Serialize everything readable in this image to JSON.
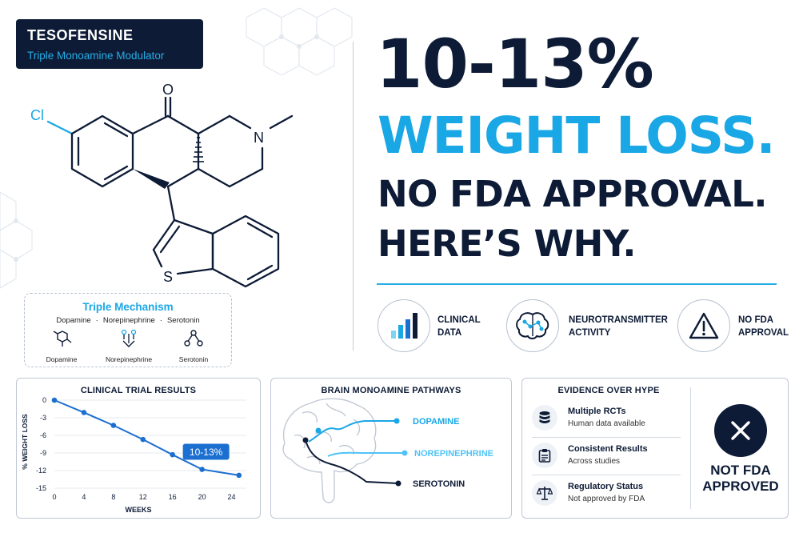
{
  "badge": {
    "title": "TESOFENSINE",
    "subtitle": "Triple Monoamine Modulator"
  },
  "molecule": {
    "cl_label": "Cl",
    "o_label": "O",
    "n_label": "N",
    "s_label": "S"
  },
  "headline": {
    "line1": "10-13%",
    "line2": "WEIGHT LOSS.",
    "line3": "NO FDA APPROVAL.",
    "line4": "HERE’S WHY."
  },
  "features": [
    {
      "icon": "bar-chart-icon",
      "line1": "CLINICAL",
      "line2": "DATA"
    },
    {
      "icon": "brain-network-icon",
      "line1": "NEUROTRANSMITTER",
      "line2": "ACTIVITY"
    },
    {
      "icon": "warning-icon",
      "line1": "NO FDA",
      "line2": "APPROVAL"
    }
  ],
  "mechanism": {
    "title": "Triple Mechanism",
    "subs": [
      "Dopamine",
      "Norepinephrine",
      "Serotonin"
    ],
    "icons": [
      {
        "icon": "dopamine-molecule-icon",
        "label": "Dopamine"
      },
      {
        "icon": "norepinephrine-molecule-icon",
        "label": "Norepinephrine"
      },
      {
        "icon": "serotonin-molecule-icon",
        "label": "Serotonin"
      }
    ]
  },
  "chart_data": {
    "type": "line",
    "title": "CLINICAL TRIAL RESULTS",
    "xlabel": "WEEKS",
    "ylabel": "% WEIGHT LOSS",
    "xticks": [
      0,
      4,
      8,
      12,
      16,
      20,
      24
    ],
    "yticks": [
      0,
      -3,
      -6,
      -9,
      -12,
      -15
    ],
    "xlim": [
      0,
      26
    ],
    "ylim": [
      -15,
      0
    ],
    "x": [
      0,
      4,
      8,
      12,
      16,
      20,
      25
    ],
    "y": [
      0,
      -2.1,
      -4.3,
      -6.7,
      -9.3,
      -11.8,
      -12.8
    ],
    "annotation": "10-13%",
    "line_color": "#1b6fd1",
    "annotation_color": "#1b6fd1"
  },
  "brain_panel": {
    "title": "BRAIN MONOAMINE PATHWAYS",
    "pathways": [
      {
        "label": "DOPAMINE",
        "color": "#1aa7e6"
      },
      {
        "label": "NOREPINEPHRINE",
        "color": "#4fc3f7"
      },
      {
        "label": "SEROTONIN",
        "color": "#0d1b36"
      }
    ]
  },
  "evidence": {
    "title": "EVIDENCE OVER HYPE",
    "items": [
      {
        "icon": "database-icon",
        "title": "Multiple RCTs",
        "sub": "Human data available"
      },
      {
        "icon": "clipboard-icon",
        "title": "Consistent Results",
        "sub": "Across studies"
      },
      {
        "icon": "scales-icon",
        "title": "Regulatory Status",
        "sub": "Not approved by FDA"
      }
    ],
    "verdict_line1": "NOT FDA",
    "verdict_line2": "APPROVED"
  },
  "colors": {
    "navy": "#0d1b36",
    "cyan": "#1aa7e6",
    "blue": "#1b6fd1"
  }
}
